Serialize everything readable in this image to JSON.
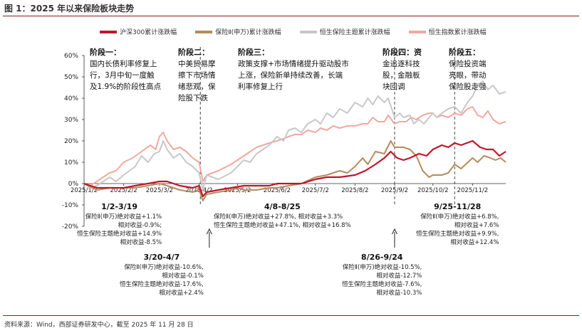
{
  "figure": {
    "title": "图 1：2025 年以来保险板块走势",
    "source": "资料来源：Wind，西部证券研发中心，截至 2025 年 11 月 28 日"
  },
  "chart_data": {
    "type": "line",
    "title": "",
    "xlabel": "",
    "ylabel": "",
    "ylim": [
      -20,
      60
    ],
    "yticks": [
      "60%",
      "50%",
      "40%",
      "30%",
      "20%",
      "10%",
      "0%",
      "-10%",
      "-20%"
    ],
    "yticks_values": [
      60,
      50,
      40,
      30,
      20,
      10,
      0,
      -10,
      -20
    ],
    "xticks": [
      "2025/1/2",
      "2025/2/2",
      "2025/3/2",
      "2025/4/2",
      "2025/5/2",
      "2025/6/2",
      "2025/7/2",
      "2025/8/2",
      "2025/9/2",
      "2025/10/2",
      "2025/11/2"
    ],
    "xticks_day": [
      0,
      31,
      59,
      90,
      120,
      151,
      181,
      212,
      243,
      273,
      304
    ],
    "x_range_day": [
      0,
      330
    ],
    "grid": false,
    "legend_position": "top",
    "series": [
      {
        "name": "沪深300累计涨跌幅",
        "color": "#c0152a",
        "points": [
          [
            0,
            0
          ],
          [
            10,
            -2
          ],
          [
            20,
            -2
          ],
          [
            31,
            -2
          ],
          [
            40,
            -1
          ],
          [
            50,
            0
          ],
          [
            59,
            1
          ],
          [
            65,
            1
          ],
          [
            75,
            -1
          ],
          [
            85,
            -2
          ],
          [
            90,
            -1
          ],
          [
            93,
            -6
          ],
          [
            96,
            -4
          ],
          [
            105,
            -3
          ],
          [
            115,
            -2
          ],
          [
            125,
            -1
          ],
          [
            135,
            -1
          ],
          [
            145,
            -1
          ],
          [
            151,
            0
          ],
          [
            160,
            0
          ],
          [
            170,
            0
          ],
          [
            181,
            2
          ],
          [
            190,
            3
          ],
          [
            200,
            3
          ],
          [
            212,
            4
          ],
          [
            220,
            6
          ],
          [
            228,
            9
          ],
          [
            235,
            12
          ],
          [
            240,
            15
          ],
          [
            245,
            12
          ],
          [
            250,
            11
          ],
          [
            255,
            12
          ],
          [
            262,
            14
          ],
          [
            268,
            13
          ],
          [
            273,
            16
          ],
          [
            280,
            18
          ],
          [
            285,
            17
          ],
          [
            290,
            19
          ],
          [
            295,
            18
          ],
          [
            304,
            20
          ],
          [
            310,
            17
          ],
          [
            315,
            16
          ],
          [
            320,
            16
          ],
          [
            325,
            13
          ],
          [
            330,
            15
          ]
        ]
      },
      {
        "name": "保险Ⅱ(申万)累计涨跌幅",
        "color": "#b58b5e",
        "points": [
          [
            0,
            0
          ],
          [
            10,
            -3
          ],
          [
            20,
            -2
          ],
          [
            31,
            -2
          ],
          [
            40,
            -2
          ],
          [
            50,
            -1
          ],
          [
            59,
            0
          ],
          [
            65,
            -1
          ],
          [
            75,
            -3
          ],
          [
            85,
            -4
          ],
          [
            90,
            -3
          ],
          [
            93,
            -8
          ],
          [
            96,
            -5
          ],
          [
            105,
            -4
          ],
          [
            115,
            -3
          ],
          [
            120,
            -2
          ],
          [
            125,
            -3
          ],
          [
            135,
            -3
          ],
          [
            145,
            -2
          ],
          [
            151,
            -2
          ],
          [
            160,
            -1
          ],
          [
            170,
            0
          ],
          [
            181,
            3
          ],
          [
            190,
            4
          ],
          [
            200,
            6
          ],
          [
            206,
            5
          ],
          [
            212,
            8
          ],
          [
            218,
            12
          ],
          [
            222,
            9
          ],
          [
            228,
            15
          ],
          [
            235,
            14
          ],
          [
            240,
            20
          ],
          [
            243,
            17
          ],
          [
            250,
            17
          ],
          [
            255,
            16
          ],
          [
            260,
            13
          ],
          [
            265,
            6
          ],
          [
            270,
            3
          ],
          [
            273,
            4
          ],
          [
            280,
            4
          ],
          [
            285,
            5
          ],
          [
            290,
            9
          ],
          [
            295,
            7
          ],
          [
            304,
            12
          ],
          [
            308,
            10
          ],
          [
            313,
            13
          ],
          [
            318,
            12
          ],
          [
            322,
            11
          ],
          [
            326,
            12
          ],
          [
            330,
            10
          ]
        ]
      },
      {
        "name": "恒生保险主题累计涨跌幅",
        "color": "#c8c8c8",
        "points": [
          [
            0,
            0
          ],
          [
            5,
            -2
          ],
          [
            10,
            -1
          ],
          [
            20,
            3
          ],
          [
            25,
            1
          ],
          [
            31,
            4
          ],
          [
            40,
            8
          ],
          [
            45,
            13
          ],
          [
            50,
            10
          ],
          [
            55,
            14
          ],
          [
            59,
            15
          ],
          [
            62,
            20
          ],
          [
            65,
            16
          ],
          [
            70,
            12
          ],
          [
            75,
            14
          ],
          [
            80,
            10
          ],
          [
            85,
            8
          ],
          [
            90,
            5
          ],
          [
            93,
            -3
          ],
          [
            96,
            4
          ],
          [
            105,
            2
          ],
          [
            115,
            5
          ],
          [
            120,
            8
          ],
          [
            125,
            11
          ],
          [
            130,
            10
          ],
          [
            135,
            14
          ],
          [
            140,
            16
          ],
          [
            145,
            18
          ],
          [
            151,
            22
          ],
          [
            156,
            20
          ],
          [
            160,
            25
          ],
          [
            165,
            26
          ],
          [
            170,
            24
          ],
          [
            175,
            28
          ],
          [
            181,
            30
          ],
          [
            185,
            28
          ],
          [
            190,
            33
          ],
          [
            195,
            31
          ],
          [
            200,
            35
          ],
          [
            206,
            33
          ],
          [
            212,
            38
          ],
          [
            218,
            36
          ],
          [
            222,
            40
          ],
          [
            226,
            37
          ],
          [
            230,
            41
          ],
          [
            235,
            38
          ],
          [
            238,
            40
          ],
          [
            243,
            31
          ],
          [
            247,
            33
          ],
          [
            250,
            31
          ],
          [
            255,
            32
          ],
          [
            258,
            28
          ],
          [
            262,
            30
          ],
          [
            266,
            28
          ],
          [
            270,
            31
          ],
          [
            273,
            33
          ],
          [
            276,
            31
          ],
          [
            280,
            33
          ],
          [
            285,
            35
          ],
          [
            290,
            36
          ],
          [
            295,
            33
          ],
          [
            300,
            38
          ],
          [
            304,
            41
          ],
          [
            308,
            46
          ],
          [
            312,
            48
          ],
          [
            316,
            44
          ],
          [
            320,
            46
          ],
          [
            325,
            42
          ],
          [
            330,
            43
          ]
        ]
      },
      {
        "name": "恒生指数累计涨跌幅",
        "color": "#f3a89f",
        "points": [
          [
            0,
            0
          ],
          [
            5,
            -1
          ],
          [
            10,
            1
          ],
          [
            15,
            3
          ],
          [
            20,
            5
          ],
          [
            25,
            6
          ],
          [
            31,
            10
          ],
          [
            38,
            12
          ],
          [
            45,
            15
          ],
          [
            52,
            18
          ],
          [
            56,
            16
          ],
          [
            59,
            22
          ],
          [
            62,
            24
          ],
          [
            65,
            20
          ],
          [
            70,
            16
          ],
          [
            75,
            17
          ],
          [
            80,
            15
          ],
          [
            85,
            12
          ],
          [
            90,
            10
          ],
          [
            93,
            1
          ],
          [
            96,
            4
          ],
          [
            105,
            6
          ],
          [
            115,
            9
          ],
          [
            120,
            11
          ],
          [
            125,
            13
          ],
          [
            130,
            15
          ],
          [
            135,
            17
          ],
          [
            140,
            18
          ],
          [
            145,
            19
          ],
          [
            151,
            20
          ],
          [
            156,
            21
          ],
          [
            160,
            22
          ],
          [
            165,
            23
          ],
          [
            170,
            23
          ],
          [
            175,
            25
          ],
          [
            181,
            24
          ],
          [
            185,
            26
          ],
          [
            190,
            25
          ],
          [
            195,
            27
          ],
          [
            200,
            26
          ],
          [
            206,
            27
          ],
          [
            212,
            27
          ],
          [
            218,
            28
          ],
          [
            222,
            28
          ],
          [
            226,
            31
          ],
          [
            230,
            29
          ],
          [
            235,
            29
          ],
          [
            238,
            32
          ],
          [
            243,
            28
          ],
          [
            247,
            29
          ],
          [
            252,
            29
          ],
          [
            256,
            31
          ],
          [
            260,
            30
          ],
          [
            265,
            32
          ],
          [
            270,
            33
          ],
          [
            273,
            33
          ],
          [
            276,
            31
          ],
          [
            280,
            32
          ],
          [
            285,
            31
          ],
          [
            290,
            33
          ],
          [
            295,
            32
          ],
          [
            300,
            35
          ],
          [
            304,
            36
          ],
          [
            308,
            32
          ],
          [
            312,
            31
          ],
          [
            316,
            34
          ],
          [
            320,
            30
          ],
          [
            325,
            28
          ],
          [
            330,
            29
          ]
        ]
      }
    ],
    "phase_dividers_day": [
      91,
      243,
      290
    ],
    "arrow_markers_day": [
      98,
      243
    ]
  },
  "phases": [
    {
      "title": "阶段一：",
      "lines": [
        "国内长债利率修复上",
        "行，3月中旬一度触",
        "及1.9%的阶段性高点"
      ]
    },
    {
      "title": "阶段二：",
      "lines": [
        "中美贸易摩",
        "擦下市场情",
        "绪悲观，保",
        "险股下跌"
      ]
    },
    {
      "title": "阶段三：",
      "lines": [
        "政策支撑+市场情绪提升驱动股市",
        "上涨，保险新单持续改善，长端",
        "利率修复上行"
      ]
    },
    {
      "title": "阶段四：资",
      "lines": [
        "金追逐科技",
        "股，金融板",
        "块回调"
      ]
    },
    {
      "title": "阶段五：",
      "lines": [
        "保险投资端",
        "亮眼，带动",
        "保险股走强"
      ]
    }
  ],
  "annotations": [
    {
      "period": "1/2-3/19",
      "lines": [
        "保险Ⅱ(申万)绝对收益+1.1%",
        "相对收益-0.9%;",
        "恒生保险主题绝对收益+14.9%",
        "相对收益-8.5%"
      ]
    },
    {
      "period": "3/20-4/7",
      "lines": [
        "保险Ⅱ(申万)绝对收益-10.6%,",
        "相对收益-0.1%",
        "恒生保险主题绝对收益-17.6%,",
        "相对收益+2.4%"
      ]
    },
    {
      "period": "4/8-8/25",
      "lines": [
        "保险Ⅱ(申万)绝对收益+27.8%, 相对收益+3.3%",
        "恒生保险主题绝对收益+47.1%, 相对收益+16.8%"
      ]
    },
    {
      "period": "8/26-9/24",
      "lines": [
        "保险Ⅱ(申万)绝对收益-10.5%,",
        "相对收益-12.7%",
        "恒生保险主题绝对收益-7.6%,",
        "相对收益-10.3%"
      ]
    },
    {
      "period": "9/25-11/28",
      "lines": [
        "保险Ⅱ(申万)绝对收益+6.8%,",
        "相对收益+7.6%",
        "恒生保险主题绝对收益+9.9%,",
        "相对收益+12.4%"
      ]
    }
  ]
}
